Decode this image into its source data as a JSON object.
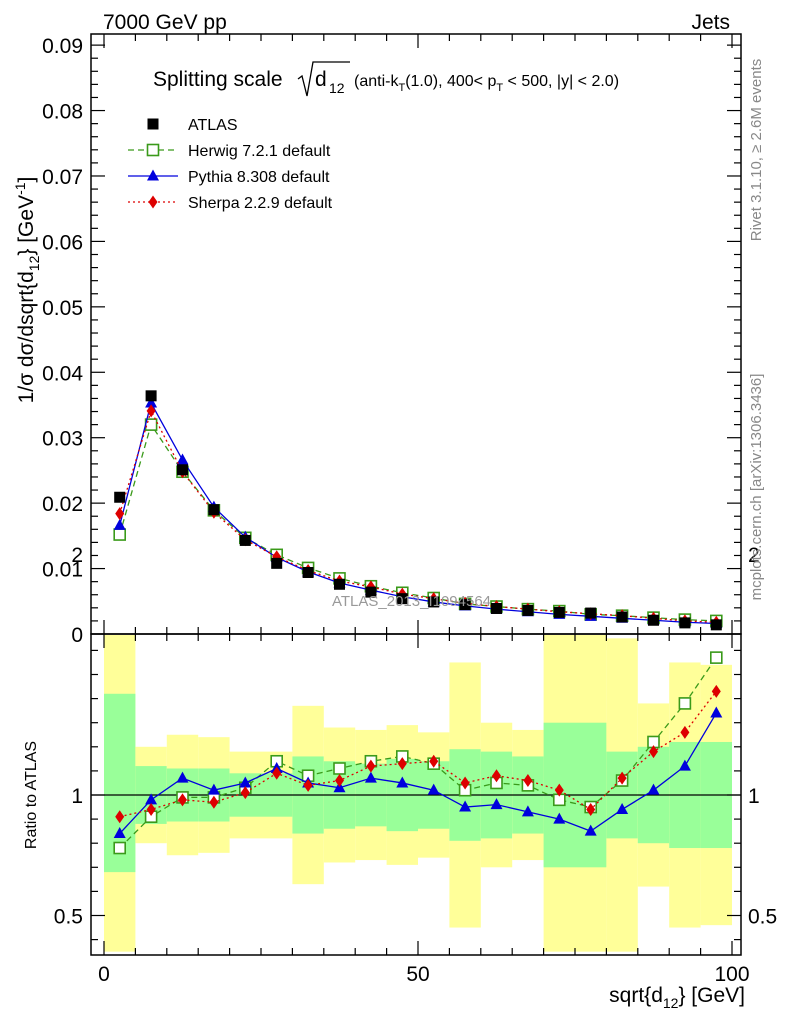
{
  "header": {
    "left": "7000 GeV pp",
    "right": "Jets"
  },
  "side_labels": {
    "rivet": "Rivet 3.1.10, ≥ 2.6M events",
    "mcplots": "mcplots.cern.ch [arXiv:1306.3436]"
  },
  "watermark": "ATLAS_2013_I1094564",
  "title": {
    "prefix": "Splitting scale",
    "radicand": "d",
    "radicand_sub": "12",
    "cuts": "(anti-k_T(1.0), 400< p_T < 500, |y| < 2.0)"
  },
  "main_ylabel": "1/σ dσ/dsqrt{d_12} [GeV^-1]",
  "ratio_ylabel": "Ratio to ATLAS",
  "xlabel": "sqrt{d_12} [GeV]",
  "colors": {
    "data": "#000000",
    "herwig": "#3a9a1a",
    "pythia": "#0000dd",
    "sherpa": "#dd0000",
    "band_inner": "#99ff99",
    "band_outer": "#ffff99"
  },
  "chart_data": [
    {
      "type": "line",
      "panel": "main",
      "xlim": [
        0,
        100
      ],
      "ylim": [
        0,
        0.092
      ],
      "xticks": [
        0,
        50,
        100
      ],
      "yticks": [
        0,
        0.01,
        0.02,
        0.03,
        0.04,
        0.05,
        0.06,
        0.07,
        0.08,
        0.09
      ],
      "ytick_labels": [
        "0",
        "0.01",
        "0.02",
        "0.03",
        "0.04",
        "0.05",
        "0.06",
        "0.07",
        "0.08",
        "0.09"
      ],
      "x": [
        2.5,
        7.5,
        12.5,
        17.5,
        22.5,
        27.5,
        32.5,
        37.5,
        42.5,
        47.5,
        52.5,
        57.5,
        62.5,
        67.5,
        72.5,
        77.5,
        82.5,
        87.5,
        92.5,
        97.5
      ],
      "series": [
        {
          "name": "ATLAS",
          "key": "atlas",
          "marker": "square",
          "values": [
            0.0209,
            0.0364,
            0.0251,
            0.019,
            0.0143,
            0.0108,
            0.0094,
            0.0076,
            0.0064,
            0.0054,
            0.0049,
            0.0045,
            0.0039,
            0.0036,
            0.0033,
            0.0032,
            0.0026,
            0.0021,
            0.0017,
            0.0014
          ]
        },
        {
          "name": "Herwig 7.2.1 default",
          "key": "herwig",
          "marker": "open-square",
          "dash": "6,4",
          "values": [
            0.0152,
            0.032,
            0.0248,
            0.0189,
            0.0147,
            0.0121,
            0.0101,
            0.0085,
            0.0073,
            0.0063,
            0.0055,
            0.0046,
            0.0042,
            0.0038,
            0.0035,
            0.003,
            0.0028,
            0.0025,
            0.0022,
            0.002
          ]
        },
        {
          "name": "Pythia 8.308 default",
          "key": "pythia",
          "marker": "triangle",
          "values": [
            0.0166,
            0.0353,
            0.0266,
            0.0194,
            0.0148,
            0.0117,
            0.0095,
            0.0078,
            0.0067,
            0.0057,
            0.0049,
            0.0043,
            0.0038,
            0.0034,
            0.003,
            0.0027,
            0.0024,
            0.0021,
            0.0018,
            0.0016
          ]
        },
        {
          "name": "Sherpa 2.2.9 default",
          "key": "sherpa",
          "marker": "diamond",
          "dash": "2,3",
          "values": [
            0.0184,
            0.0341,
            0.0248,
            0.0186,
            0.0144,
            0.0118,
            0.0097,
            0.0081,
            0.0072,
            0.0061,
            0.0054,
            0.0047,
            0.0042,
            0.0038,
            0.0034,
            0.0031,
            0.0028,
            0.0024,
            0.002,
            0.0018
          ]
        }
      ]
    },
    {
      "type": "line",
      "panel": "ratio",
      "xlim": [
        0,
        100
      ],
      "ylim": [
        0.35,
        2.25
      ],
      "xticks": [
        0,
        50,
        100
      ],
      "xtick_labels": [
        "0",
        "50",
        "100"
      ],
      "yticks": [
        0.5,
        1,
        2
      ],
      "ytick_labels": [
        "0.5",
        "1",
        "2"
      ],
      "bin_edges": [
        0,
        5,
        10,
        15,
        20,
        25,
        30,
        35,
        40,
        45,
        50,
        55,
        60,
        65,
        70,
        75,
        80,
        85,
        90,
        95,
        100
      ],
      "band_inner": [
        [
          0.68,
          1.42
        ],
        [
          0.88,
          1.12
        ],
        [
          0.89,
          1.11
        ],
        [
          0.89,
          1.11
        ],
        [
          0.91,
          1.09
        ],
        [
          0.91,
          1.09
        ],
        [
          0.84,
          1.16
        ],
        [
          0.86,
          1.14
        ],
        [
          0.87,
          1.13
        ],
        [
          0.85,
          1.15
        ],
        [
          0.86,
          1.14
        ],
        [
          0.81,
          1.19
        ],
        [
          0.82,
          1.18
        ],
        [
          0.84,
          1.16
        ],
        [
          0.7,
          1.3
        ],
        [
          0.7,
          1.3
        ],
        [
          0.82,
          1.18
        ],
        [
          0.8,
          1.2
        ],
        [
          0.78,
          1.22
        ],
        [
          0.78,
          1.22
        ]
      ],
      "band_outer": [
        [
          0.35,
          1.78
        ],
        [
          0.8,
          1.2
        ],
        [
          0.75,
          1.25
        ],
        [
          0.76,
          1.24
        ],
        [
          0.82,
          1.18
        ],
        [
          0.82,
          1.18
        ],
        [
          0.63,
          1.37
        ],
        [
          0.72,
          1.28
        ],
        [
          0.73,
          1.27
        ],
        [
          0.71,
          1.29
        ],
        [
          0.74,
          1.26
        ],
        [
          0.45,
          1.55
        ],
        [
          0.7,
          1.3
        ],
        [
          0.73,
          1.27
        ],
        [
          0.35,
          1.7
        ],
        [
          0.35,
          1.7
        ],
        [
          0.35,
          1.65
        ],
        [
          0.62,
          1.38
        ],
        [
          0.45,
          1.55
        ],
        [
          0.46,
          1.54
        ]
      ],
      "x": [
        2.5,
        7.5,
        12.5,
        17.5,
        22.5,
        27.5,
        32.5,
        37.5,
        42.5,
        47.5,
        52.5,
        57.5,
        62.5,
        67.5,
        72.5,
        77.5,
        82.5,
        87.5,
        92.5,
        97.5
      ],
      "reference": 1,
      "series": [
        {
          "name": "Herwig 7.2.1 default",
          "key": "herwig",
          "marker": "open-square",
          "dash": "6,4",
          "values": [
            0.78,
            0.91,
            0.99,
            0.99,
            1.03,
            1.14,
            1.08,
            1.11,
            1.14,
            1.16,
            1.13,
            1.02,
            1.05,
            1.04,
            0.98,
            0.95,
            1.06,
            1.22,
            1.38,
            1.57
          ]
        },
        {
          "name": "Pythia 8.308 default",
          "key": "pythia",
          "marker": "triangle",
          "values": [
            0.84,
            0.98,
            1.07,
            1.02,
            1.05,
            1.11,
            1.05,
            1.03,
            1.07,
            1.05,
            1.02,
            0.95,
            0.96,
            0.93,
            0.9,
            0.85,
            0.94,
            1.02,
            1.12,
            1.34
          ]
        },
        {
          "name": "Sherpa 2.2.9 default",
          "key": "sherpa",
          "marker": "diamond",
          "dash": "2,3",
          "values": [
            0.91,
            0.94,
            0.98,
            0.97,
            1.01,
            1.09,
            1.04,
            1.06,
            1.12,
            1.13,
            1.14,
            1.05,
            1.08,
            1.06,
            1.02,
            0.94,
            1.07,
            1.18,
            1.26,
            1.43
          ]
        }
      ]
    }
  ]
}
